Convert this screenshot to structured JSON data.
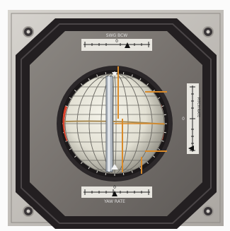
{
  "instrument": {
    "top_scale_label": "SWG BCW",
    "top_scale_center": "0",
    "bottom_scale_center": "0",
    "bottom_scale_label": "YAW RATE",
    "right_scale_label": "PITCH RATE",
    "right_scale_center": "0"
  },
  "colors": {
    "frame_outer": "#c9c6c1",
    "bezel": "#231f21",
    "panel_face": "#7a7572",
    "ball_light": "#eeece2",
    "ball_shadow": "#7d7b72",
    "needle_orange": "#d98a2a",
    "red_marker": "#d8402a",
    "scale_white": "#e8e6e0"
  }
}
